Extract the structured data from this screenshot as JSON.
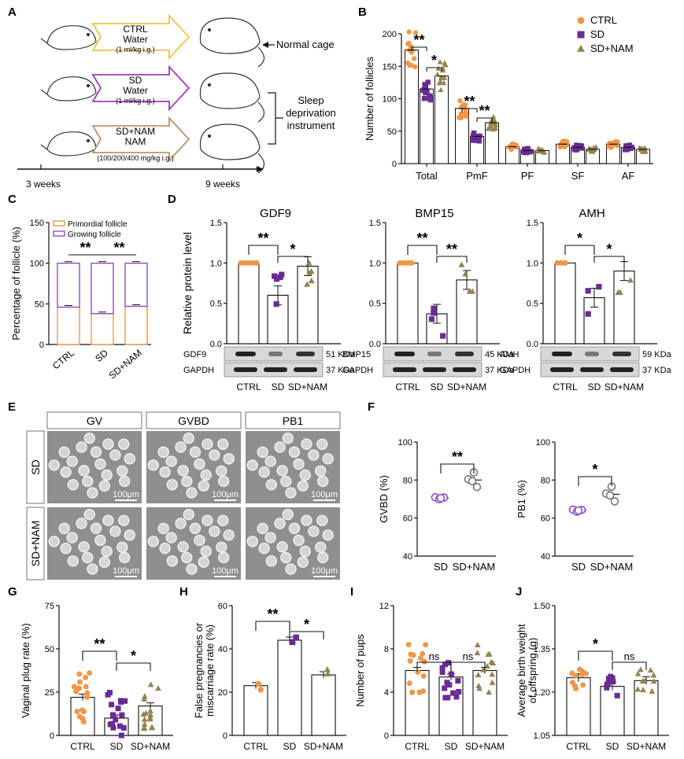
{
  "panels": {
    "A": {
      "label": "A",
      "groups": [
        {
          "name": "CTRL",
          "treatment": "Water",
          "dose": "(1 ml/kg i.g.)",
          "color": "#f0c243"
        },
        {
          "name": "SD",
          "treatment": "Water",
          "dose": "(1 ml/kg i.g.)",
          "color": "#9b3fb4"
        },
        {
          "name": "SD+NAM",
          "treatment": "NAM",
          "dose": "(100/200/400 mg/kg i.g.)",
          "color": "#b9956b"
        }
      ],
      "normal_cage": "Normal cage",
      "instrument": [
        "Sleep",
        "deprivation",
        "instrument"
      ],
      "timeline": [
        "3 weeks",
        "9 weeks"
      ]
    },
    "B": {
      "label": "B"
    },
    "C": {
      "label": "C"
    },
    "D": {
      "label": "D",
      "ylabel": "Relative protein level"
    },
    "E": {
      "label": "E",
      "columns": [
        "GV",
        "GVBD",
        "PB1"
      ],
      "rows": [
        "SD",
        "SD+NAM"
      ],
      "scale": "100μm"
    },
    "F": {
      "label": "F"
    },
    "G": {
      "label": "G"
    },
    "H": {
      "label": "H"
    },
    "I": {
      "label": "I"
    },
    "J": {
      "label": "J"
    }
  },
  "colors": {
    "ctrl": "#f0974a",
    "sd": "#6a2b95",
    "nam": "#94834e",
    "growing": "#8b4ec1",
    "primordial": "#f0974a",
    "grey": "#777777"
  },
  "chart_data": [
    {
      "id": "B",
      "type": "bar",
      "title": "",
      "xlabel": "",
      "ylabel": "Number of follicles",
      "ylim": [
        0,
        200
      ],
      "yticks": [
        0,
        50,
        100,
        150,
        200
      ],
      "categories": [
        "Total",
        "PmF",
        "PF",
        "SF",
        "AF"
      ],
      "series": [
        {
          "name": "CTRL",
          "values": [
            175,
            85,
            26,
            30,
            30
          ]
        },
        {
          "name": "SD",
          "values": [
            115,
            42,
            20,
            25,
            25
          ]
        },
        {
          "name": "SD+NAM",
          "values": [
            135,
            63,
            20,
            22,
            22
          ]
        }
      ],
      "significance": [
        {
          "between": "CTRL-SD",
          "category": "Total",
          "mark": "**"
        },
        {
          "between": "SD-SD+NAM",
          "category": "Total",
          "mark": "*"
        },
        {
          "between": "CTRL-SD",
          "category": "PmF",
          "mark": "**"
        },
        {
          "between": "SD-SD+NAM",
          "category": "PmF",
          "mark": "**"
        }
      ],
      "legend": [
        "CTRL",
        "SD",
        "SD+NAM"
      ],
      "legend_position": "top-right"
    },
    {
      "id": "C",
      "type": "bar",
      "ylabel": "Percentage of follicle (%)",
      "ylim": [
        0,
        150
      ],
      "yticks": [
        0,
        50,
        100,
        150
      ],
      "categories": [
        "CTRL",
        "SD",
        "SD+NAM"
      ],
      "series": [
        {
          "name": "Primordial follicle",
          "values": [
            46,
            38,
            47
          ]
        },
        {
          "name": "Growing follicle",
          "values": [
            54,
            62,
            53
          ]
        }
      ],
      "significance": [
        {
          "between": "CTRL-SD",
          "mark": "**"
        },
        {
          "between": "SD-SD+NAM",
          "mark": "**"
        }
      ],
      "legend": [
        "Primordial follicle",
        "Growing follicle"
      ],
      "legend_position": "top"
    },
    {
      "id": "D1",
      "type": "bar",
      "title": "GDF9",
      "ylim": [
        0,
        1.5
      ],
      "yticks": [
        "0.0",
        "0.5",
        "1.0",
        "1.5"
      ],
      "categories": [
        "CTRL",
        "SD",
        "SD+NAM"
      ],
      "values": [
        1.0,
        0.6,
        0.96
      ],
      "significance": [
        {
          "between": "CTRL-SD",
          "mark": "**"
        },
        {
          "between": "SD-SD+NAM",
          "mark": "*"
        }
      ],
      "blot": [
        {
          "label": "GDF9",
          "size": "51 KDa"
        },
        {
          "label": "GAPDH",
          "size": "37 KDa"
        }
      ]
    },
    {
      "id": "D2",
      "type": "bar",
      "title": "BMP15",
      "ylim": [
        0,
        1.5
      ],
      "yticks": [
        "0.0",
        "0.5",
        "1.0",
        "1.5"
      ],
      "categories": [
        "CTRL",
        "SD",
        "SD+NAM"
      ],
      "values": [
        1.0,
        0.37,
        0.79
      ],
      "significance": [
        {
          "between": "CTRL-SD",
          "mark": "**"
        },
        {
          "between": "SD-SD+NAM",
          "mark": "**"
        }
      ],
      "blot": [
        {
          "label": "BMP15",
          "size": "45 KDa"
        },
        {
          "label": "GAPDH",
          "size": "37 KDa"
        }
      ]
    },
    {
      "id": "D3",
      "type": "bar",
      "title": "AMH",
      "ylim": [
        0,
        1.5
      ],
      "yticks": [
        "0.0",
        "0.5",
        "1.0",
        "1.5"
      ],
      "categories": [
        "CTRL",
        "SD",
        "SD+NAM"
      ],
      "values": [
        1.0,
        0.57,
        0.9
      ],
      "significance": [
        {
          "between": "CTRL-SD",
          "mark": "*"
        },
        {
          "between": "SD-SD+NAM",
          "mark": "*"
        }
      ],
      "blot": [
        {
          "label": "AMH",
          "size": "59 KDa"
        },
        {
          "label": "GAPDH",
          "size": "37 KDa"
        }
      ]
    },
    {
      "id": "F1",
      "type": "scatter",
      "ylabel": "GVBD (%)",
      "ylim": [
        40,
        100
      ],
      "yticks": [
        40,
        60,
        80,
        100
      ],
      "categories": [
        "SD",
        "SD+NAM"
      ],
      "values": [
        70.5,
        80
      ],
      "significance": [
        {
          "between": "SD-SD+NAM",
          "mark": "**"
        }
      ]
    },
    {
      "id": "F2",
      "type": "scatter",
      "ylabel": "PB1 (%)",
      "ylim": [
        40,
        100
      ],
      "yticks": [
        40,
        60,
        80,
        100
      ],
      "categories": [
        "SD",
        "SD+NAM"
      ],
      "values": [
        64,
        72.5
      ],
      "significance": [
        {
          "between": "SD-SD+NAM",
          "mark": "*"
        }
      ]
    },
    {
      "id": "G",
      "type": "bar",
      "ylabel": "Vaginal plug rate (%)",
      "ylim": [
        0,
        75
      ],
      "yticks": [
        0,
        25,
        50,
        75
      ],
      "categories": [
        "CTRL",
        "SD",
        "SD+NAM"
      ],
      "values": [
        22,
        10,
        17
      ],
      "significance": [
        {
          "between": "CTRL-SD",
          "mark": "**"
        },
        {
          "between": "SD-SD+NAM",
          "mark": "*"
        }
      ]
    },
    {
      "id": "H",
      "type": "bar",
      "ylabel": "False pregnancies or miscarriage rate (%)",
      "ylim": [
        0,
        60
      ],
      "yticks": [
        0,
        20,
        40,
        60
      ],
      "categories": [
        "CTRL",
        "SD",
        "SD+NAM"
      ],
      "values": [
        23,
        44,
        28
      ],
      "significance": [
        {
          "between": "CTRL-SD",
          "mark": "**"
        },
        {
          "between": "SD-SD+NAM",
          "mark": "*"
        }
      ]
    },
    {
      "id": "I",
      "type": "bar",
      "ylabel": "Number of pups",
      "ylim": [
        0,
        12
      ],
      "yticks": [
        0,
        4,
        8,
        12
      ],
      "categories": [
        "CTRL",
        "SD",
        "SD+NAM"
      ],
      "values": [
        6.0,
        5.4,
        6.0
      ],
      "significance": [
        {
          "between": "CTRL-SD",
          "mark": "ns"
        },
        {
          "between": "SD-SD+NAM",
          "mark": "ns"
        }
      ]
    },
    {
      "id": "J",
      "type": "bar",
      "ylabel": "Average birth weight of offspring (g)",
      "ylim": [
        1.05,
        1.5
      ],
      "yticks": [
        "1.05",
        "1.20",
        "1.35",
        "1.50"
      ],
      "categories": [
        "CTRL",
        "SD",
        "SD+NAM"
      ],
      "values": [
        1.25,
        1.22,
        1.24
      ],
      "significance": [
        {
          "between": "CTRL-SD",
          "mark": "*"
        },
        {
          "between": "SD-SD+NAM",
          "mark": "ns"
        }
      ]
    }
  ]
}
